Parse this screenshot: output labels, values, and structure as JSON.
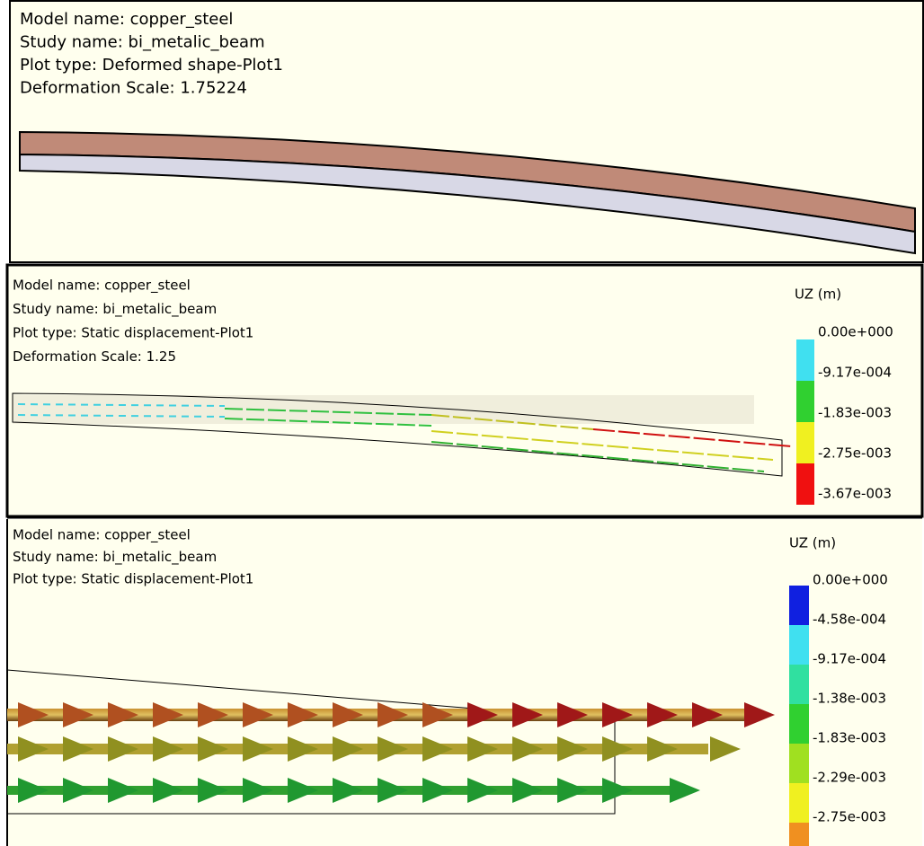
{
  "panels": [
    {
      "lines": [
        "Model name: copper_steel",
        "Study name: bi_metalic_beam",
        "Plot type: Deformed shape-Plot1",
        "Deformation Scale: 1.75224"
      ]
    },
    {
      "lines": [
        "Model name: copper_steel",
        "Study name: bi_metalic_beam",
        "Plot type: Static displacement-Plot1",
        "Deformation Scale: 1.25"
      ],
      "legend": {
        "title": "UZ (m)",
        "labels": [
          "0.00e+000",
          "-9.17e-004",
          "-1.83e-003",
          "-2.75e-003",
          "-3.67e-003"
        ]
      }
    },
    {
      "lines": [
        "Model name: copper_steel",
        "Study name: bi_metalic_beam",
        "Plot type: Static displacement-Plot1"
      ],
      "legend": {
        "title": "UZ (m)",
        "labels": [
          "0.00e+000",
          "-4.58e-004",
          "-9.17e-004",
          "-1.38e-003",
          "-1.83e-003",
          "-2.29e-003",
          "-2.75e-003"
        ]
      }
    }
  ]
}
